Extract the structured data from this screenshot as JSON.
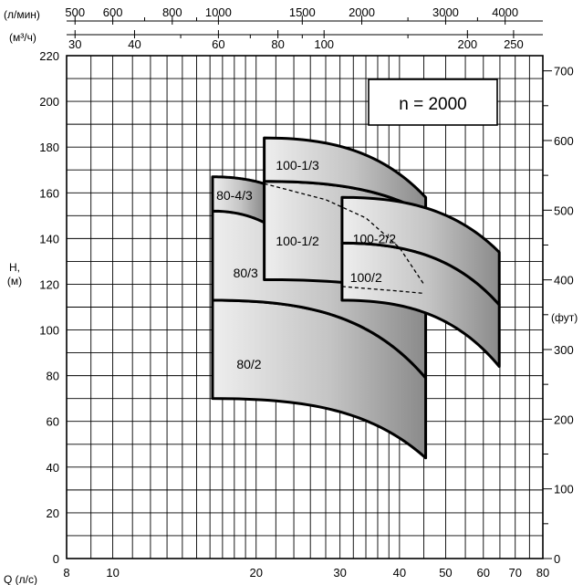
{
  "chart_data": {
    "type": "area",
    "title": "",
    "speed_label": "n  =  2000",
    "x_axis": {
      "label": "Q (л/с)",
      "scale": "log",
      "range": [
        8,
        80
      ],
      "ticks": [
        8,
        10,
        20,
        30,
        40,
        50,
        60,
        70,
        80
      ],
      "grid": [
        8,
        9,
        10,
        11,
        12,
        13,
        14,
        15,
        16,
        17,
        18,
        19,
        20,
        22,
        24,
        26,
        28,
        30,
        32,
        34,
        36,
        38,
        40,
        45,
        50,
        55,
        60,
        65,
        70,
        75,
        80
      ]
    },
    "y_axis": {
      "label": "H,",
      "unit": "(м)",
      "range": [
        0,
        220
      ],
      "ticks": [
        0,
        20,
        40,
        60,
        80,
        100,
        120,
        140,
        160,
        180,
        200,
        220
      ],
      "grid_step": 10
    },
    "y_axis_right": {
      "unit": "(фут)",
      "ticks": [
        0,
        100,
        200,
        300,
        400,
        500,
        600,
        700
      ],
      "minor_step": 50
    },
    "top_axis_1": {
      "label": "(л/мин)",
      "ticks": [
        500,
        600,
        800,
        1000,
        1500,
        2000,
        3000,
        4000
      ],
      "minor": [
        700,
        900,
        2500,
        3500
      ]
    },
    "top_axis_2": {
      "label": "(м³/ч)",
      "ticks": [
        30,
        40,
        60,
        80,
        100,
        200,
        250
      ],
      "minor": [
        50,
        70,
        90,
        150
      ]
    },
    "regions": [
      {
        "label": "80/2",
        "q_min": 16.2,
        "q_max": 45.4,
        "top": {
          "left": 113,
          "right": 79
        },
        "bottom": {
          "left": 70,
          "right": 44
        }
      },
      {
        "label": "80/3",
        "q_min": 16.2,
        "q_max": 45.4,
        "top": {
          "left": 152,
          "right": 140
        },
        "bottom": {
          "left": 113,
          "right": 79
        }
      },
      {
        "label": "80-4/3",
        "q_min": 16.2,
        "q_max": 20.8,
        "top": {
          "left": 167,
          "right": 164
        },
        "bottom": {
          "left": 152,
          "right": 147
        }
      },
      {
        "label": "100-1/2",
        "q_min": 20.8,
        "q_max": 45.4,
        "top": {
          "left": 165,
          "right": 151
        },
        "bottom": {
          "left": 122,
          "right": 114
        }
      },
      {
        "label": "100-1/3",
        "q_min": 20.8,
        "q_max": 45.4,
        "top": {
          "left": 184,
          "right": 158
        },
        "bottom": {
          "left": 165,
          "right": 151
        }
      },
      {
        "label": "100/2",
        "q_min": 30.3,
        "q_max": 64.8,
        "top": {
          "left": 138,
          "right": 111
        },
        "bottom": {
          "left": 113,
          "right": 84
        }
      },
      {
        "label": "100-2/2",
        "q_min": 30.3,
        "q_max": 64.8,
        "top": {
          "left": 158,
          "right": 134
        },
        "bottom": {
          "left": 138,
          "right": 111
        }
      }
    ],
    "dashed_lines": [
      {
        "points": [
          [
            20.8,
            164
          ],
          [
            28,
            157
          ],
          [
            34,
            149
          ],
          [
            40,
            136
          ],
          [
            45,
            120
          ]
        ]
      },
      {
        "points": [
          [
            30.3,
            119
          ],
          [
            40,
            117
          ],
          [
            45,
            116
          ]
        ]
      }
    ]
  }
}
